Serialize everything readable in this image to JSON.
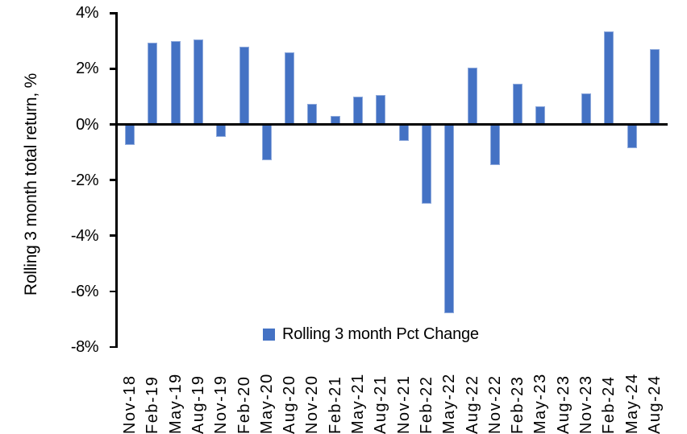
{
  "chart_data": {
    "type": "bar",
    "title": "",
    "ylabel": "Rolling 3 month total return, %",
    "xlabel": "",
    "series_name": "Rolling 3 month Pct Change",
    "legend_position": "bottom-center",
    "grid": false,
    "bar_color": "#4472C4",
    "bar_border_color": "#8faadc",
    "axis_color": "#000000",
    "ylim": [
      -8,
      4
    ],
    "yticks": [
      4,
      2,
      0,
      -2,
      -4,
      -6,
      -8
    ],
    "ytick_labels": [
      "4%",
      "2%",
      "0%",
      "-2%",
      "-4%",
      "-6%",
      "-8%"
    ],
    "categories": [
      "Nov-18",
      "Feb-19",
      "May-19",
      "Aug-19",
      "Nov-19",
      "Feb-20",
      "May-20",
      "Aug-20",
      "Nov-20",
      "Feb-21",
      "May-21",
      "Aug-21",
      "Nov-21",
      "Feb-22",
      "May-22",
      "Aug-22",
      "Nov-22",
      "Feb-23",
      "May-23",
      "Aug-23",
      "Nov-23",
      "Feb-24",
      "May-24",
      "Aug-24"
    ],
    "values": [
      -0.75,
      2.95,
      3.0,
      3.05,
      -0.45,
      2.8,
      -1.3,
      2.6,
      0.75,
      0.3,
      1.0,
      1.05,
      -0.6,
      -2.85,
      -6.8,
      2.05,
      -1.45,
      1.45,
      0.65,
      0.0,
      1.1,
      3.35,
      -0.85,
      2.7
    ]
  }
}
